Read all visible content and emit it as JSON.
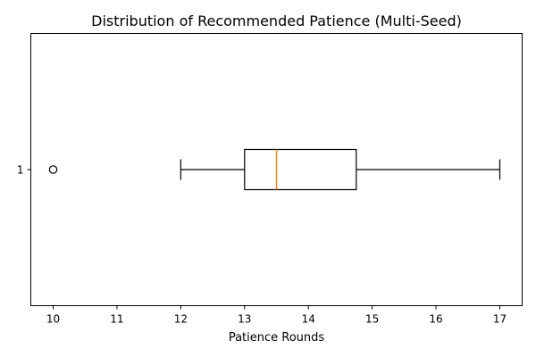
{
  "chart_data": {
    "type": "boxplot",
    "title": "Distribution of Recommended Patience (Multi-Seed)",
    "xlabel": "Patience Rounds",
    "ylabel": "",
    "orientation": "horizontal",
    "xlim": [
      9.65,
      17.35
    ],
    "x_ticks": [
      10,
      11,
      12,
      13,
      14,
      15,
      16,
      17
    ],
    "y_ticks": [
      "1"
    ],
    "boxes": [
      {
        "label": "1",
        "whisker_low": 12,
        "q1": 13,
        "median": 13.5,
        "q3": 14.75,
        "whisker_high": 17,
        "outliers": [
          10
        ]
      }
    ],
    "grid": false,
    "colors": {
      "box": "#000000",
      "median": "#ff7f0e",
      "outlier": "#000000"
    }
  }
}
